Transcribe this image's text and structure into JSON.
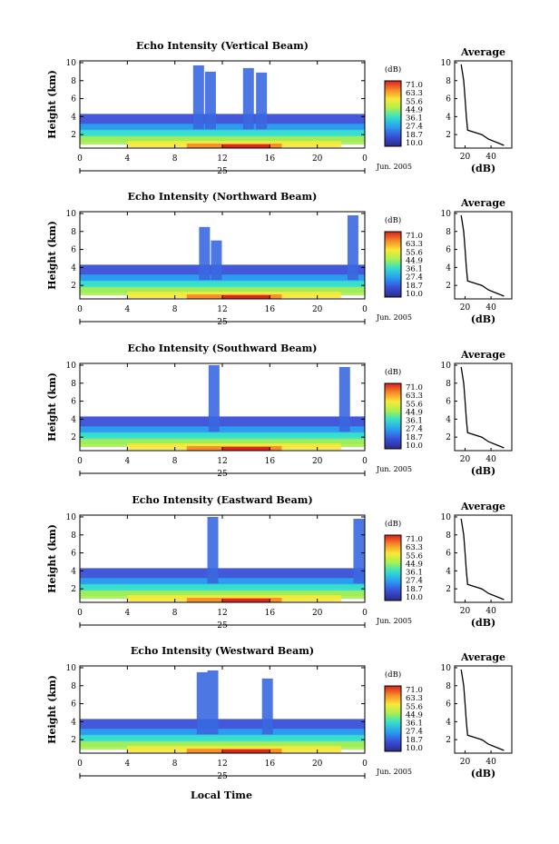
{
  "figure": {
    "xlabel_bottom": "Local Time",
    "date_label": "Jun. 2005",
    "day_label": "25",
    "colorbar_unit": "(dB)",
    "colorbar_ticks": [
      "71.0",
      "63.3",
      "55.6",
      "44.9",
      "36.1",
      "27.4",
      "18.7",
      "10.0"
    ],
    "average_title": "Average",
    "average_xlabel": "(dB)",
    "x_ticks": [
      "0",
      "4",
      "8",
      "12",
      "16",
      "20",
      "0"
    ],
    "y_ticks": [
      "2",
      "4",
      "6",
      "8",
      "10"
    ],
    "ylabel": "Height (km)"
  },
  "chart_data": [
    {
      "type": "heatmap",
      "title": "Echo Intensity (Vertical Beam)",
      "xlabel": "",
      "ylabel": "Height (km)",
      "xlim": [
        0,
        24
      ],
      "ylim": [
        0.5,
        10.2
      ],
      "colorbar_range": [
        10.0,
        71.0
      ],
      "cloud_columns": [
        {
          "x": 10.0,
          "top": 9.7
        },
        {
          "x": 11.0,
          "top": 9.0
        },
        {
          "x": 14.2,
          "top": 9.4
        },
        {
          "x": 15.3,
          "top": 8.9
        }
      ],
      "average_profile": {
        "x": [
          50,
          38,
          33,
          22,
          21,
          20,
          19,
          17
        ],
        "y": [
          0.8,
          1.5,
          2.0,
          2.5,
          4.0,
          6.0,
          8.0,
          9.8
        ]
      }
    },
    {
      "type": "heatmap",
      "title": "Echo Intensity (Northward Beam)",
      "xlabel": "",
      "ylabel": "Height (km)",
      "xlim": [
        0,
        24
      ],
      "ylim": [
        0.5,
        10.2
      ],
      "colorbar_range": [
        10.0,
        71.0
      ],
      "cloud_columns": [
        {
          "x": 10.5,
          "top": 8.5
        },
        {
          "x": 11.5,
          "top": 7.0
        },
        {
          "x": 23.0,
          "top": 9.8
        }
      ],
      "average_profile": {
        "x": [
          50,
          38,
          33,
          22,
          21,
          20,
          19,
          17
        ],
        "y": [
          0.8,
          1.5,
          2.0,
          2.5,
          4.0,
          6.0,
          8.0,
          9.8
        ]
      }
    },
    {
      "type": "heatmap",
      "title": "Echo Intensity (Southward Beam)",
      "xlabel": "",
      "ylabel": "Height (km)",
      "xlim": [
        0,
        24
      ],
      "ylim": [
        0.5,
        10.2
      ],
      "colorbar_range": [
        10.0,
        71.0
      ],
      "cloud_columns": [
        {
          "x": 11.3,
          "top": 10.0
        },
        {
          "x": 22.3,
          "top": 9.8
        }
      ],
      "average_profile": {
        "x": [
          50,
          38,
          33,
          22,
          21,
          20,
          19,
          17
        ],
        "y": [
          0.8,
          1.5,
          2.0,
          2.5,
          4.0,
          6.0,
          8.0,
          9.8
        ]
      }
    },
    {
      "type": "heatmap",
      "title": "Echo Intensity (Eastward Beam)",
      "xlabel": "",
      "ylabel": "Height (km)",
      "xlim": [
        0,
        24
      ],
      "ylim": [
        0.5,
        10.2
      ],
      "colorbar_range": [
        10.0,
        71.0
      ],
      "cloud_columns": [
        {
          "x": 11.2,
          "top": 10.0
        },
        {
          "x": 23.5,
          "top": 9.8
        }
      ],
      "average_profile": {
        "x": [
          50,
          38,
          33,
          22,
          21,
          20,
          19,
          17
        ],
        "y": [
          0.8,
          1.5,
          2.0,
          2.5,
          4.0,
          6.0,
          8.0,
          9.8
        ]
      }
    },
    {
      "type": "heatmap",
      "title": "Echo Intensity (Westward Beam)",
      "xlabel": "Local Time",
      "ylabel": "Height (km)",
      "xlim": [
        0,
        24
      ],
      "ylim": [
        0.5,
        10.2
      ],
      "colorbar_range": [
        10.0,
        71.0
      ],
      "cloud_columns": [
        {
          "x": 10.3,
          "top": 9.5
        },
        {
          "x": 11.2,
          "top": 9.7
        },
        {
          "x": 15.8,
          "top": 8.8
        }
      ],
      "average_profile": {
        "x": [
          50,
          38,
          33,
          22,
          21,
          20,
          19,
          17
        ],
        "y": [
          0.8,
          1.5,
          2.0,
          2.5,
          4.0,
          6.0,
          8.0,
          9.8
        ]
      }
    }
  ]
}
